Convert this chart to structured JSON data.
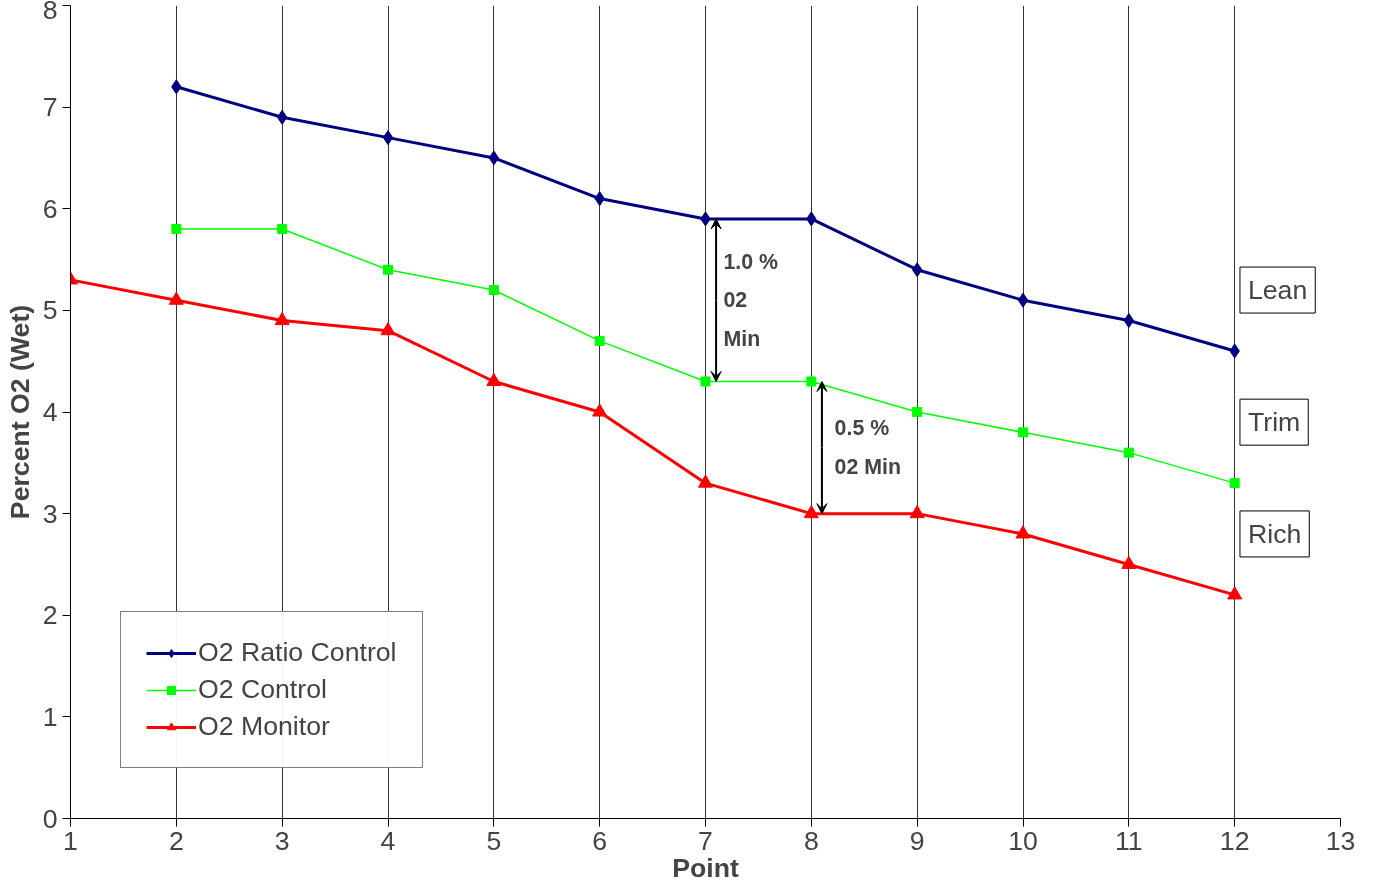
{
  "chart_data": {
    "type": "line",
    "xlabel": "Point",
    "ylabel": "Percent O2 (Wet)",
    "xlim": [
      1,
      13
    ],
    "ylim": [
      0,
      8
    ],
    "xticks": [
      1,
      2,
      3,
      4,
      5,
      6,
      7,
      8,
      9,
      10,
      11,
      12,
      13
    ],
    "yticks": [
      0,
      1,
      2,
      3,
      4,
      5,
      6,
      7,
      8
    ],
    "grid": "x",
    "legend": "bottom left",
    "series": [
      {
        "name": "O2 Ratio Control",
        "color": "#000080",
        "marker": "diamond",
        "x": [
          2,
          3,
          4,
          5,
          6,
          7,
          8,
          9,
          10,
          11,
          12
        ],
        "values": [
          7.2,
          6.9,
          6.7,
          6.5,
          6.1,
          5.9,
          5.9,
          5.4,
          5.1,
          4.9,
          4.6
        ]
      },
      {
        "name": "O2 Control",
        "color": "#00ff00",
        "marker": "square",
        "x": [
          2,
          3,
          4,
          5,
          6,
          7,
          8,
          9,
          10,
          11,
          12
        ],
        "values": [
          5.8,
          5.8,
          5.4,
          5.2,
          4.7,
          4.3,
          4.3,
          4.0,
          3.8,
          3.6,
          3.3
        ]
      },
      {
        "name": "O2 Monitor",
        "color": "#ff0000",
        "marker": "triangle",
        "x": [
          1,
          2,
          3,
          4,
          5,
          6,
          7,
          8,
          9,
          10,
          11,
          12
        ],
        "values": [
          5.3,
          5.1,
          4.9,
          4.8,
          4.3,
          4.0,
          3.3,
          3.0,
          3.0,
          2.8,
          2.5,
          2.2
        ]
      }
    ],
    "annotations": [
      {
        "text": "1.0 %\n02\nMin",
        "x": 7,
        "y": 5.9
      },
      {
        "text": "0.5 %\n02 Min",
        "x": 8,
        "y": 4.3
      },
      "Lean",
      "Trim",
      "Rich"
    ]
  }
}
